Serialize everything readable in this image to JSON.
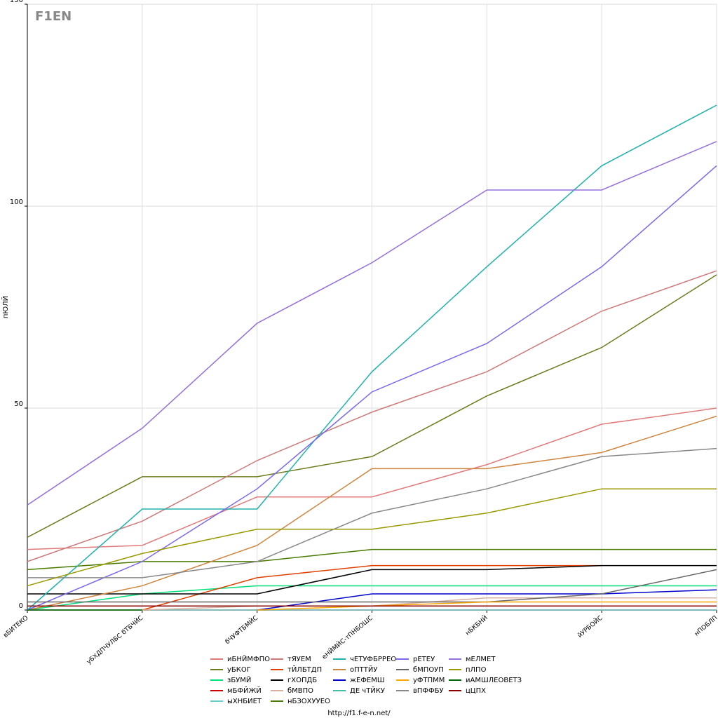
{
  "chart_data": {
    "type": "line",
    "logo": "F1EN",
    "y_label": "пЮЛЙ",
    "footer": "http://f1.f-e-n.net/",
    "categories": [
      "вБИТЕКО",
      "уБХДПЧУЛБС бТБЧЙС",
      "бЧУФТБМЙС",
      "еНЙМЙС-тПНБОШС",
      "нБКБНЙ",
      "йУРБОЙС",
      "нПОБЛП"
    ],
    "ylim": [
      0,
      150
    ],
    "yticks": [
      0,
      50,
      100,
      150
    ],
    "grid": true,
    "series": [
      {
        "name": "иБНЙМФПО",
        "color": "#e07a7a",
        "values": [
          15,
          16,
          28,
          28,
          36,
          46,
          50
        ]
      },
      {
        "name": "уБКОГ",
        "color": "#6b7d1e",
        "values": [
          18,
          33,
          33,
          38,
          53,
          65,
          83
        ]
      },
      {
        "name": "зБУМЙ",
        "color": "#00e07a",
        "values": [
          0,
          4,
          6,
          6,
          6,
          6,
          6
        ]
      },
      {
        "name": "мБФЙЖЙ",
        "color": "#cc0000",
        "values": [
          0,
          0,
          0,
          0,
          0,
          0,
          0
        ]
      },
      {
        "name": "ыХНБИЕТ",
        "color": "#66cccc",
        "values": [
          0,
          0,
          0,
          0,
          0,
          0,
          0
        ]
      },
      {
        "name": "тЯУЕМ",
        "color": "#cc7a7a",
        "values": [
          12,
          22,
          37,
          49,
          59,
          74,
          84
        ]
      },
      {
        "name": "тЙЛБТДП",
        "color": "#e04000",
        "values": [
          null,
          0,
          8,
          11,
          11,
          11,
          null
        ]
      },
      {
        "name": "гХОПДБ",
        "color": "#000000",
        "values": [
          4,
          4,
          4,
          10,
          10,
          11,
          11
        ]
      },
      {
        "name": "бМВПО",
        "color": "#d8b0a0",
        "values": [
          null,
          0,
          1,
          1,
          3,
          3,
          3
        ]
      },
      {
        "name": "нБЗОХУУЕО",
        "color": "#4a7a00",
        "values": [
          10,
          12,
          12,
          15,
          15,
          15,
          15
        ]
      },
      {
        "name": "чЕТУФБРРЕО",
        "color": "#20b2aa",
        "values": [
          0,
          25,
          25,
          59,
          85,
          110,
          125
        ]
      },
      {
        "name": "оПТТЙУ",
        "color": "#cd853f",
        "values": [
          0,
          6,
          16,
          35,
          35,
          39,
          48
        ]
      },
      {
        "name": "жЕФЕМШ",
        "color": "#0000cc",
        "values": [
          null,
          null,
          0,
          4,
          4,
          4,
          5
        ]
      },
      {
        "name": "ДЕ чТЙКУ",
        "color": "#40c0a0",
        "values": [
          null,
          null,
          null,
          null,
          null,
          null,
          null
        ]
      },
      {
        "name": "рЕТЕУ",
        "color": "#7b68ee",
        "values": [
          0,
          12,
          30,
          54,
          66,
          85,
          110
        ]
      },
      {
        "name": "бМПОУП",
        "color": "#666666",
        "values": [
          2,
          2,
          2,
          2,
          2,
          4,
          10
        ]
      },
      {
        "name": "уФТПММ",
        "color": "#ffa500",
        "values": [
          null,
          null,
          0,
          1,
          2,
          2,
          2
        ]
      },
      {
        "name": "вПФФБУ",
        "color": "#888888",
        "values": [
          8,
          8,
          12,
          24,
          30,
          38,
          40
        ]
      },
      {
        "name": "мЕЛМЕТ",
        "color": "#9370db",
        "values": [
          26,
          45,
          71,
          86,
          104,
          104,
          116
        ]
      },
      {
        "name": "пЛПО",
        "color": "#999900",
        "values": [
          6,
          14,
          20,
          20,
          24,
          30,
          30
        ]
      },
      {
        "name": "иАМШЛЕОВЕТЗ",
        "color": "#006400",
        "values": [
          0,
          0,
          null,
          null,
          null,
          null,
          null
        ]
      },
      {
        "name": "цЦПХ",
        "color": "#8b0000",
        "values": [
          1,
          1,
          1,
          1,
          1,
          1,
          1
        ]
      }
    ]
  }
}
